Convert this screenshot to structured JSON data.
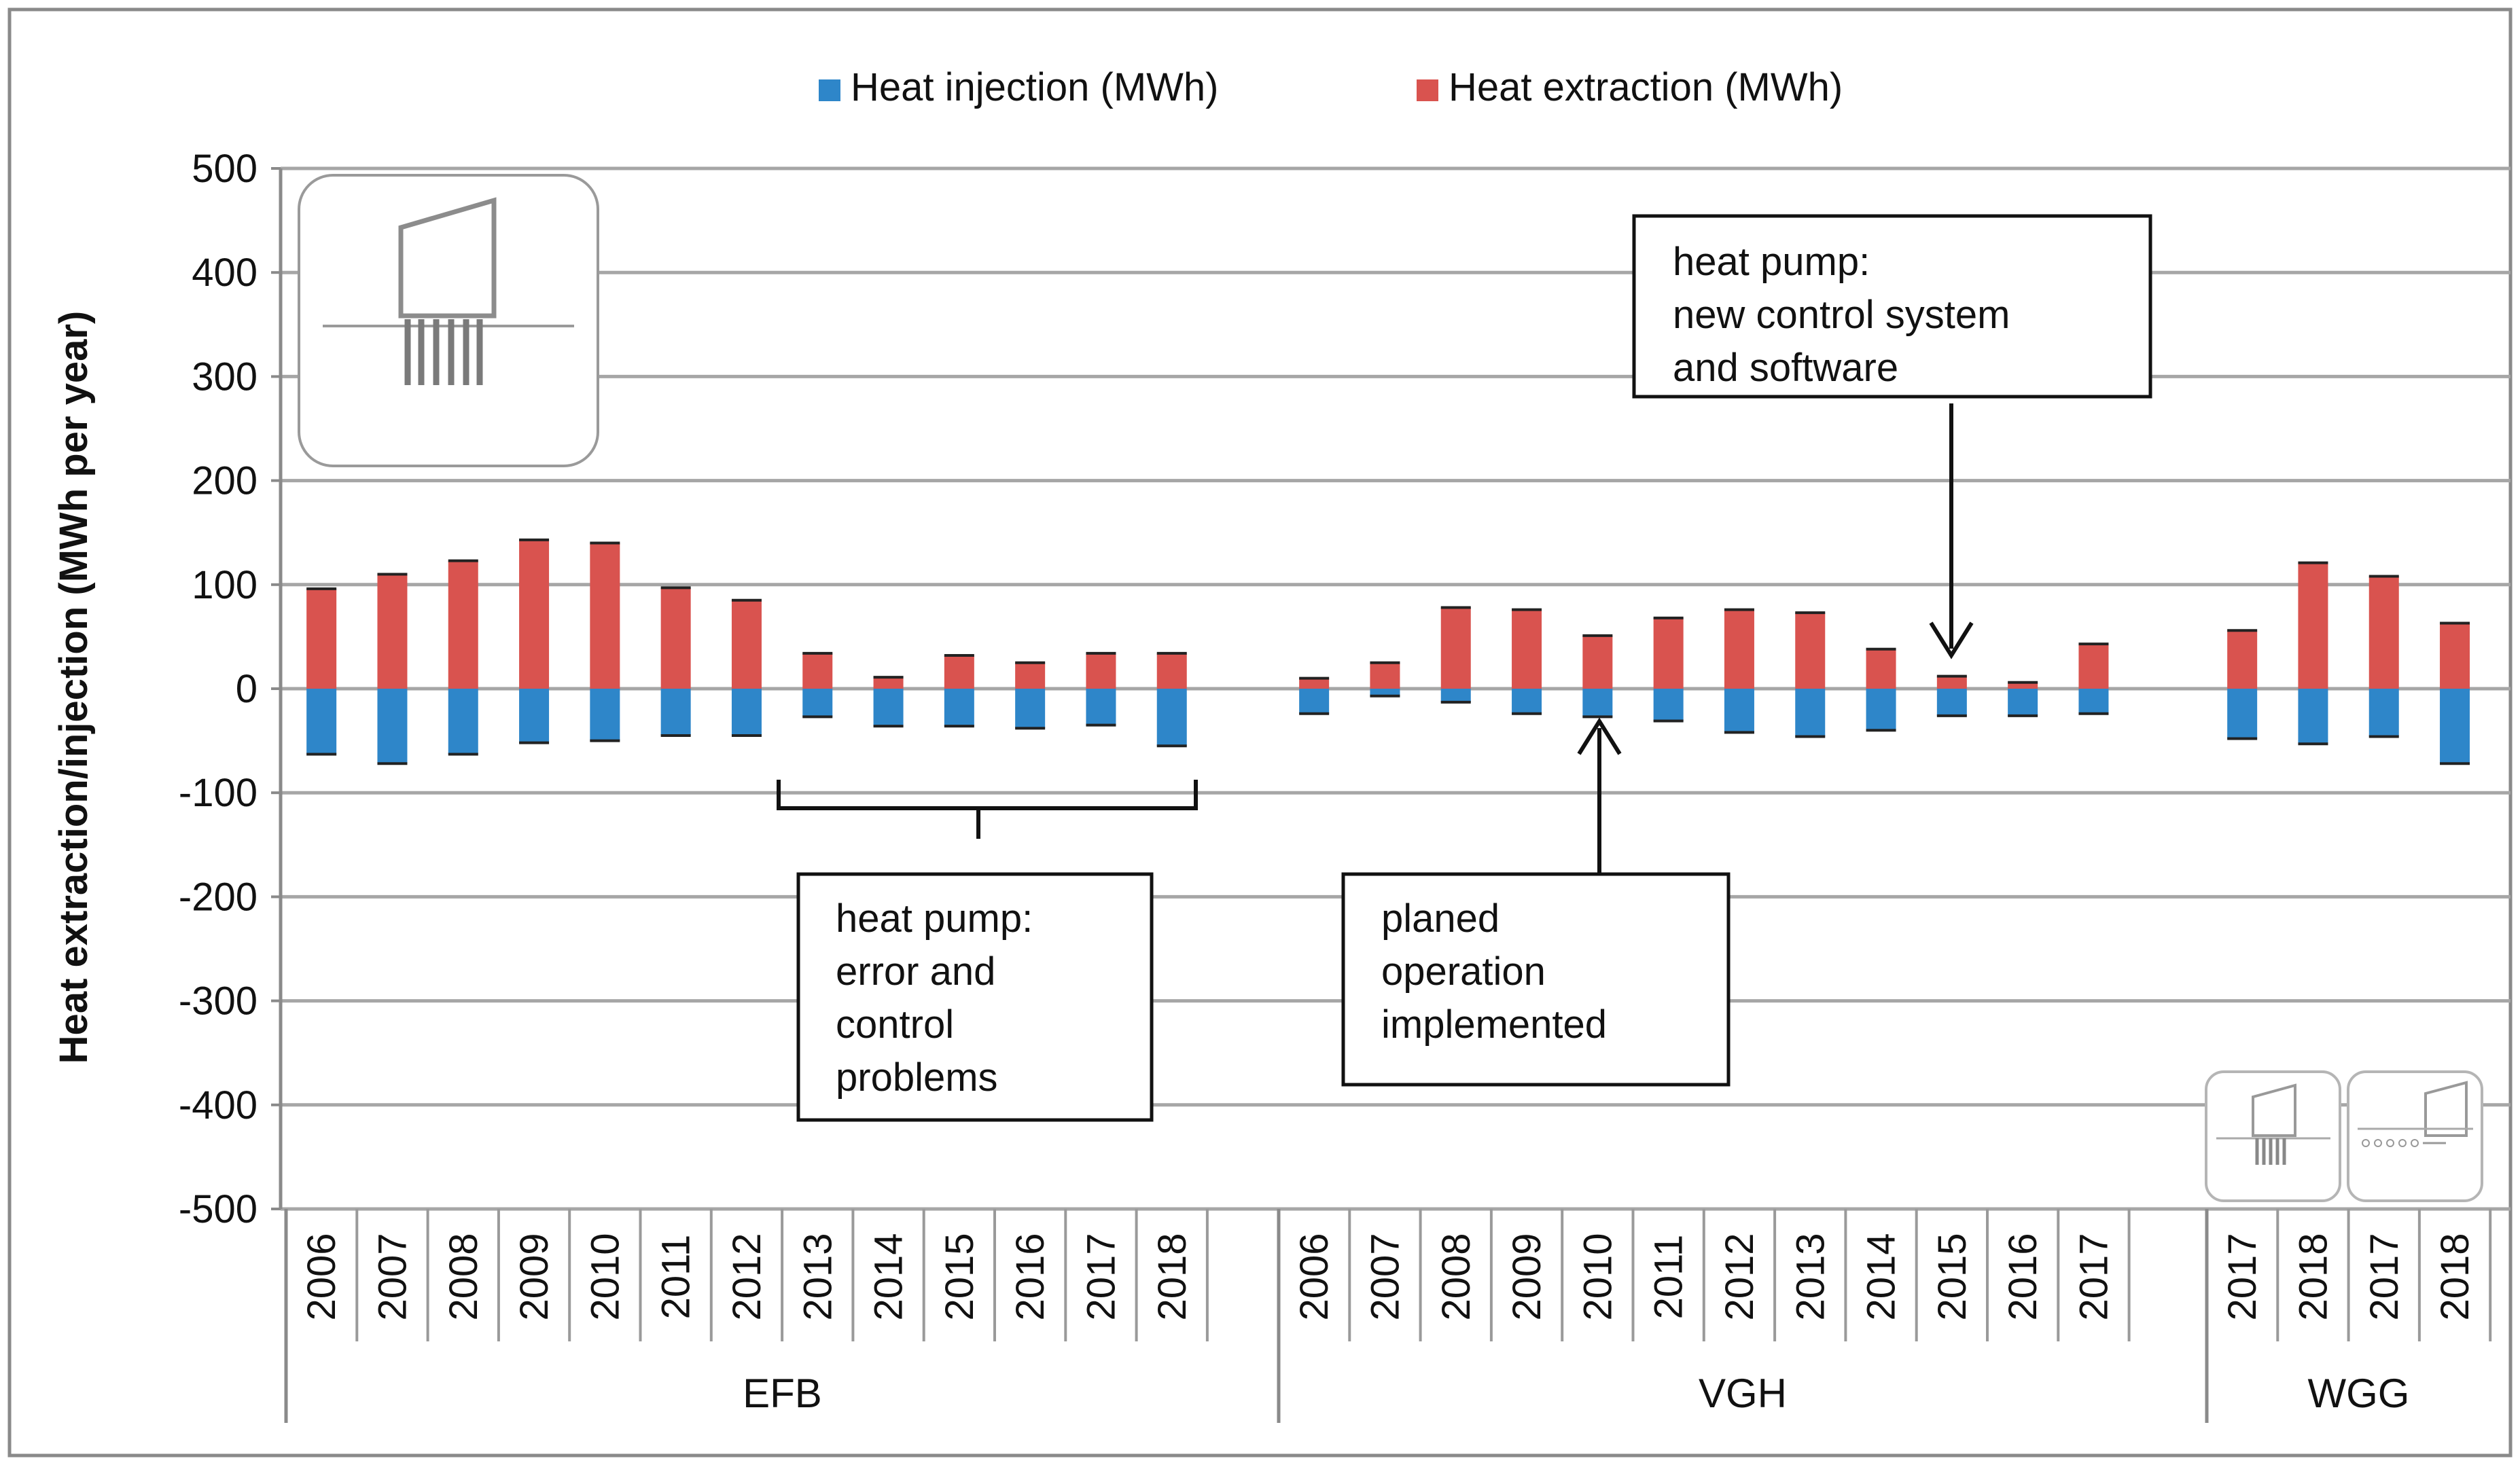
{
  "chart_data": {
    "type": "bar",
    "stacked": true,
    "title": "",
    "ylabel": "Heat extraction/injection (MWh per year)",
    "xlabel": "",
    "ylim": [
      -500,
      500
    ],
    "yticks": [
      500,
      400,
      300,
      200,
      100,
      0,
      -100,
      -200,
      -300,
      -400,
      -500
    ],
    "legend": {
      "position": "top-center",
      "entries": [
        {
          "name": "Heat injection (MWh)",
          "color": "#2e86c9"
        },
        {
          "name": "Heat extraction (MWh)",
          "color": "#d9534f"
        }
      ]
    },
    "groups": [
      {
        "name": "EFB",
        "categories": [
          "2006",
          "2007",
          "2008",
          "2009",
          "2010",
          "2011",
          "2012",
          "2013",
          "2014",
          "2015",
          "2016",
          "2017",
          "2018"
        ]
      },
      {
        "name": "VGH",
        "categories": [
          "2006",
          "2007",
          "2008",
          "2009",
          "2010",
          "2011",
          "2012",
          "2013",
          "2014",
          "2015",
          "2016",
          "2017"
        ]
      },
      {
        "name": "WGG",
        "categories": [
          "2017",
          "2018",
          "2017",
          "2018"
        ]
      }
    ],
    "series": [
      {
        "name": "Heat extraction (MWh)",
        "color": "#d9534f",
        "values": [
          96,
          110,
          123,
          143,
          140,
          97,
          85,
          34,
          11,
          32,
          25,
          34,
          34,
          10,
          25,
          78,
          76,
          51,
          68,
          76,
          73,
          38,
          12,
          6,
          43,
          56,
          121,
          108,
          63
        ]
      },
      {
        "name": "Heat injection (MWh)",
        "color": "#2e86c9",
        "values": [
          -63,
          -72,
          -63,
          -52,
          -50,
          -45,
          -45,
          -27,
          -36,
          -36,
          -38,
          -35,
          -55,
          -24,
          -7,
          -13,
          -24,
          -27,
          -31,
          -42,
          -46,
          -40,
          -26,
          -26,
          -24,
          -48,
          -53,
          -46,
          -72
        ]
      }
    ],
    "annotations": [
      {
        "id": "efb-bracket",
        "lines": [
          "heat pump:",
          "error and",
          "control",
          "problems"
        ]
      },
      {
        "id": "vgh-2010",
        "lines": [
          "planed",
          "operation",
          "implemented"
        ]
      },
      {
        "id": "vgh-2015",
        "lines": [
          "heat pump:",
          "new control system",
          "and software"
        ]
      }
    ]
  }
}
